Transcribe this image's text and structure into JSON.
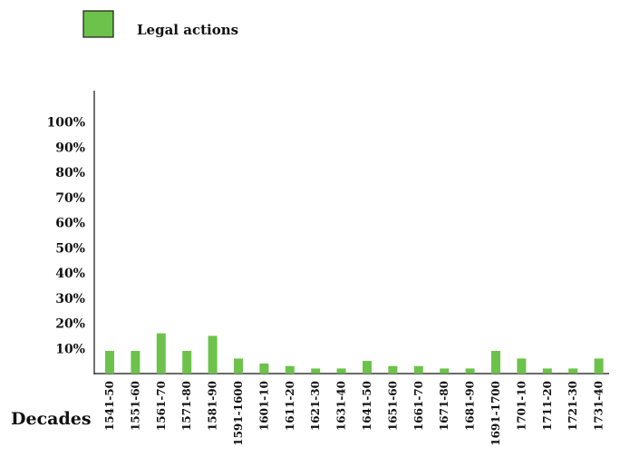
{
  "chart_data": {
    "type": "bar",
    "legend": [
      {
        "name": "Legal actions",
        "color": "#6cc24a"
      }
    ],
    "xlabel": "Decades",
    "ylabel": "",
    "ylim": [
      0,
      100
    ],
    "y_ticks": [
      {
        "value": 10,
        "label": "10%"
      },
      {
        "value": 20,
        "label": "20%"
      },
      {
        "value": 30,
        "label": "30%"
      },
      {
        "value": 40,
        "label": "40%"
      },
      {
        "value": 50,
        "label": "50%"
      },
      {
        "value": 60,
        "label": "60%"
      },
      {
        "value": 70,
        "label": "70%"
      },
      {
        "value": 80,
        "label": "80%"
      },
      {
        "value": 90,
        "label": "90%"
      },
      {
        "value": 100,
        "label": "100%"
      }
    ],
    "categories": [
      "1541-50",
      "1551-60",
      "1561-70",
      "1571-80",
      "1581-90",
      "1591-1600",
      "1601-10",
      "1611-20",
      "1621-30",
      "1631-40",
      "1641-50",
      "1651-60",
      "1661-70",
      "1671-80",
      "1681-90",
      "1691-1700",
      "1701-10",
      "1711-20",
      "1721-30",
      "1731-40"
    ],
    "series": [
      {
        "name": "Legal actions",
        "color": "#6cc24a",
        "values": [
          9,
          9,
          16,
          9,
          15,
          6,
          4,
          3,
          2,
          2,
          5,
          3,
          3,
          2,
          2,
          9,
          6,
          2,
          2,
          6
        ]
      }
    ],
    "grid": false,
    "legend_position": "top-left"
  }
}
